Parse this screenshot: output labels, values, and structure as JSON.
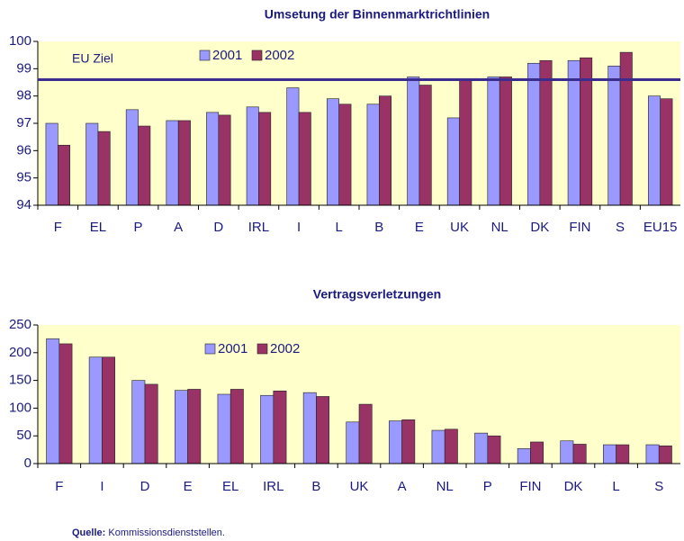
{
  "chart_data": [
    {
      "type": "bar",
      "title": "Umsetung der Binnenmarktrichtlinien",
      "categories": [
        "F",
        "EL",
        "P",
        "A",
        "D",
        "IRL",
        "I",
        "L",
        "B",
        "E",
        "UK",
        "NL",
        "DK",
        "FIN",
        "S",
        "EU15"
      ],
      "series": [
        {
          "name": "2001",
          "color": "#9999ff",
          "values": [
            97.0,
            97.0,
            97.5,
            97.1,
            97.4,
            97.6,
            98.3,
            97.9,
            97.7,
            98.7,
            97.2,
            98.7,
            99.2,
            99.3,
            99.1,
            98.0
          ]
        },
        {
          "name": "2002",
          "color": "#993366",
          "values": [
            96.2,
            96.7,
            96.9,
            97.1,
            97.3,
            97.4,
            97.4,
            97.7,
            98.0,
            98.4,
            98.6,
            98.7,
            99.3,
            99.4,
            99.6,
            97.9
          ]
        }
      ],
      "ylim": [
        94,
        100
      ],
      "yticks": [
        94,
        95,
        96,
        97,
        98,
        99,
        100
      ],
      "target": {
        "label": "EU Ziel",
        "value": 98.6,
        "color": "#3b2d8f"
      },
      "legend": "top"
    },
    {
      "type": "bar",
      "title": "Vertragsverletzungen",
      "categories": [
        "F",
        "I",
        "D",
        "E",
        "EL",
        "IRL",
        "B",
        "UK",
        "A",
        "NL",
        "P",
        "FIN",
        "DK",
        "L",
        "S"
      ],
      "series": [
        {
          "name": "2001",
          "color": "#9999ff",
          "values": [
            225,
            192,
            150,
            132,
            125,
            123,
            128,
            75,
            77,
            60,
            55,
            27,
            41,
            34,
            34
          ]
        },
        {
          "name": "2002",
          "color": "#993366",
          "values": [
            216,
            192,
            143,
            134,
            134,
            131,
            121,
            107,
            79,
            62,
            50,
            39,
            35,
            34,
            32
          ]
        }
      ],
      "ylim": [
        0,
        250
      ],
      "yticks": [
        0,
        50,
        100,
        150,
        200,
        250
      ],
      "legend": "top"
    }
  ],
  "source": {
    "label": "Quelle:",
    "text": "Kommissionsdienststellen."
  }
}
